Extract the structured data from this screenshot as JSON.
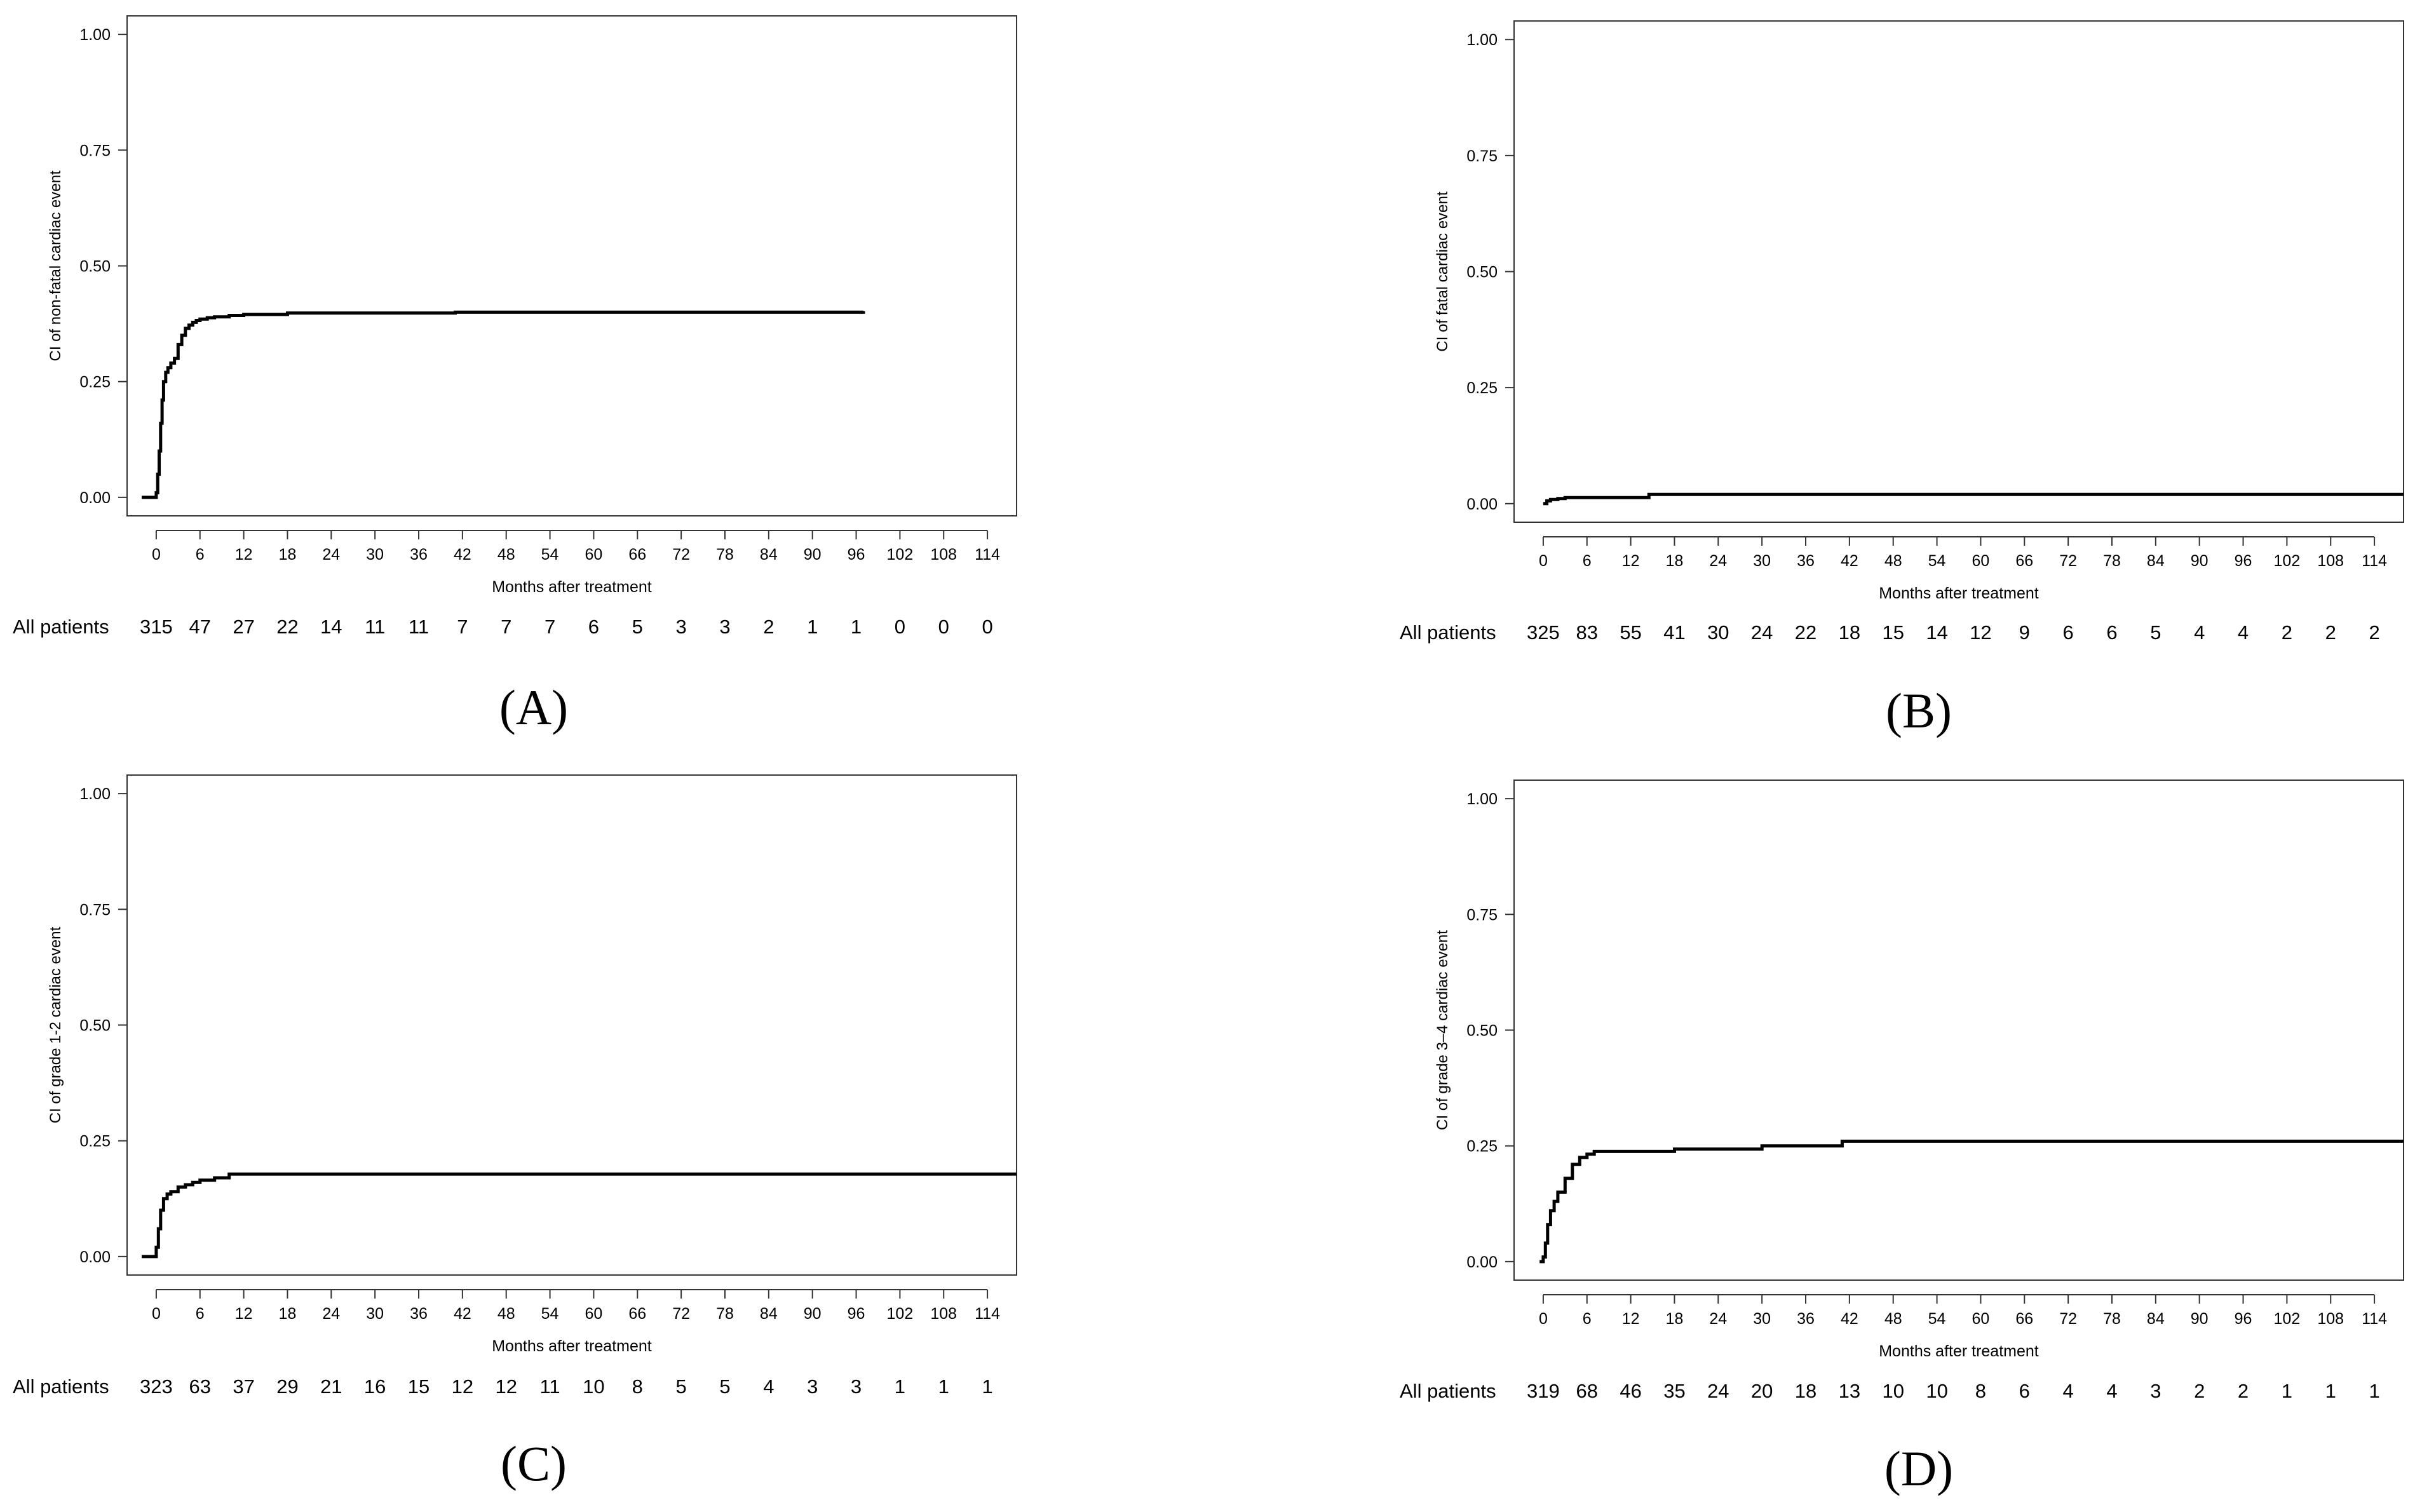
{
  "figure": {
    "panels": [
      {
        "id": "A",
        "label": "(A)",
        "risk_row_label": "All patients",
        "risk_counts": [
          "315",
          "47",
          "27",
          "22",
          "14",
          "11",
          "11",
          "7",
          "7",
          "7",
          "6",
          "5",
          "3",
          "3",
          "2",
          "1",
          "1",
          "0",
          "0",
          "0"
        ]
      },
      {
        "id": "B",
        "label": "(B)",
        "risk_row_label": "All patients",
        "risk_counts": [
          "325",
          "83",
          "55",
          "41",
          "30",
          "24",
          "22",
          "18",
          "15",
          "14",
          "12",
          "9",
          "6",
          "6",
          "5",
          "4",
          "4",
          "2",
          "2",
          "2"
        ]
      },
      {
        "id": "C",
        "label": "(C)",
        "risk_row_label": "All patients",
        "risk_counts": [
          "323",
          "63",
          "37",
          "29",
          "21",
          "16",
          "15",
          "12",
          "12",
          "11",
          "10",
          "8",
          "5",
          "5",
          "4",
          "3",
          "3",
          "1",
          "1",
          "1"
        ]
      },
      {
        "id": "D",
        "label": "(D)",
        "risk_row_label": "All patients",
        "risk_counts": [
          "319",
          "68",
          "46",
          "35",
          "24",
          "20",
          "18",
          "13",
          "10",
          "10",
          "8",
          "6",
          "4",
          "4",
          "3",
          "2",
          "2",
          "1",
          "1",
          "1"
        ]
      }
    ]
  },
  "colors": {
    "line": "#000000",
    "axis": "#333333",
    "background": "#ffffff"
  },
  "chart_data": [
    {
      "type": "line",
      "step": true,
      "title": "",
      "xlabel": "Months after treatment",
      "ylabel": "CI of non-fatal cardiac event",
      "xlim": [
        -4,
        118
      ],
      "ylim": [
        -0.04,
        1.04
      ],
      "xticks": [
        0,
        6,
        12,
        18,
        24,
        30,
        36,
        42,
        48,
        54,
        60,
        66,
        72,
        78,
        84,
        90,
        96,
        102,
        108,
        114
      ],
      "yticks": [
        "0.00",
        "0.25",
        "0.50",
        "0.75",
        "1.00"
      ],
      "series": [
        {
          "x": [
            -2,
            -0.5,
            0,
            0.2,
            0.4,
            0.6,
            0.8,
            1,
            1.3,
            1.6,
            2,
            2.5,
            3,
            3.5,
            4,
            4.5,
            5,
            5.5,
            6,
            7,
            8,
            10,
            12,
            18,
            41,
            97
          ],
          "y": [
            0,
            0,
            0.01,
            0.05,
            0.1,
            0.16,
            0.21,
            0.25,
            0.27,
            0.28,
            0.29,
            0.3,
            0.33,
            0.35,
            0.365,
            0.372,
            0.378,
            0.382,
            0.385,
            0.388,
            0.39,
            0.393,
            0.395,
            0.398,
            0.4,
            0.402
          ]
        }
      ]
    },
    {
      "type": "line",
      "step": true,
      "title": "",
      "xlabel": "Months after treatment",
      "ylabel": "CI of fatal cardiac event",
      "xlim": [
        -4,
        118
      ],
      "ylim": [
        -0.04,
        1.04
      ],
      "xticks": [
        0,
        6,
        12,
        18,
        24,
        30,
        36,
        42,
        48,
        54,
        60,
        66,
        72,
        78,
        84,
        90,
        96,
        102,
        108,
        114
      ],
      "yticks": [
        "0.00",
        "0.25",
        "0.50",
        "0.75",
        "1.00"
      ],
      "series": [
        {
          "x": [
            0,
            0.5,
            1,
            2,
            3,
            6,
            14,
            14.5,
            118
          ],
          "y": [
            0,
            0.006,
            0.009,
            0.011,
            0.013,
            0.013,
            0.013,
            0.02,
            0.02
          ]
        }
      ]
    },
    {
      "type": "line",
      "step": true,
      "title": "",
      "xlabel": "Months after treatment",
      "ylabel": "CI of grade 1-2 cardiac event",
      "xlim": [
        -4,
        118
      ],
      "ylim": [
        -0.04,
        1.04
      ],
      "xticks": [
        0,
        6,
        12,
        18,
        24,
        30,
        36,
        42,
        48,
        54,
        60,
        66,
        72,
        78,
        84,
        90,
        96,
        102,
        108,
        114
      ],
      "yticks": [
        "0.00",
        "0.25",
        "0.50",
        "0.75",
        "1.00"
      ],
      "series": [
        {
          "x": [
            -2,
            -0.3,
            0,
            0.3,
            0.6,
            1,
            1.5,
            2,
            3,
            4,
            5,
            6,
            8,
            10,
            118
          ],
          "y": [
            0,
            0,
            0.02,
            0.06,
            0.1,
            0.125,
            0.135,
            0.14,
            0.15,
            0.155,
            0.16,
            0.165,
            0.17,
            0.178,
            0.178
          ]
        }
      ]
    },
    {
      "type": "line",
      "step": true,
      "title": "",
      "xlabel": "Months after treatment",
      "ylabel": "CI of grade 3–4 cardiac event",
      "xlim": [
        -4,
        118
      ],
      "ylim": [
        -0.04,
        1.04
      ],
      "xticks": [
        0,
        6,
        12,
        18,
        24,
        30,
        36,
        42,
        48,
        54,
        60,
        66,
        72,
        78,
        84,
        90,
        96,
        102,
        108,
        114
      ],
      "yticks": [
        "0.00",
        "0.25",
        "0.50",
        "0.75",
        "1.00"
      ],
      "series": [
        {
          "x": [
            -0.5,
            0,
            0.3,
            0.6,
            1,
            1.5,
            2,
            3,
            4,
            5,
            6,
            7,
            18,
            30,
            41,
            118
          ],
          "y": [
            0,
            0.01,
            0.04,
            0.08,
            0.11,
            0.13,
            0.15,
            0.18,
            0.21,
            0.225,
            0.232,
            0.238,
            0.243,
            0.25,
            0.26,
            0.26
          ]
        }
      ]
    }
  ]
}
